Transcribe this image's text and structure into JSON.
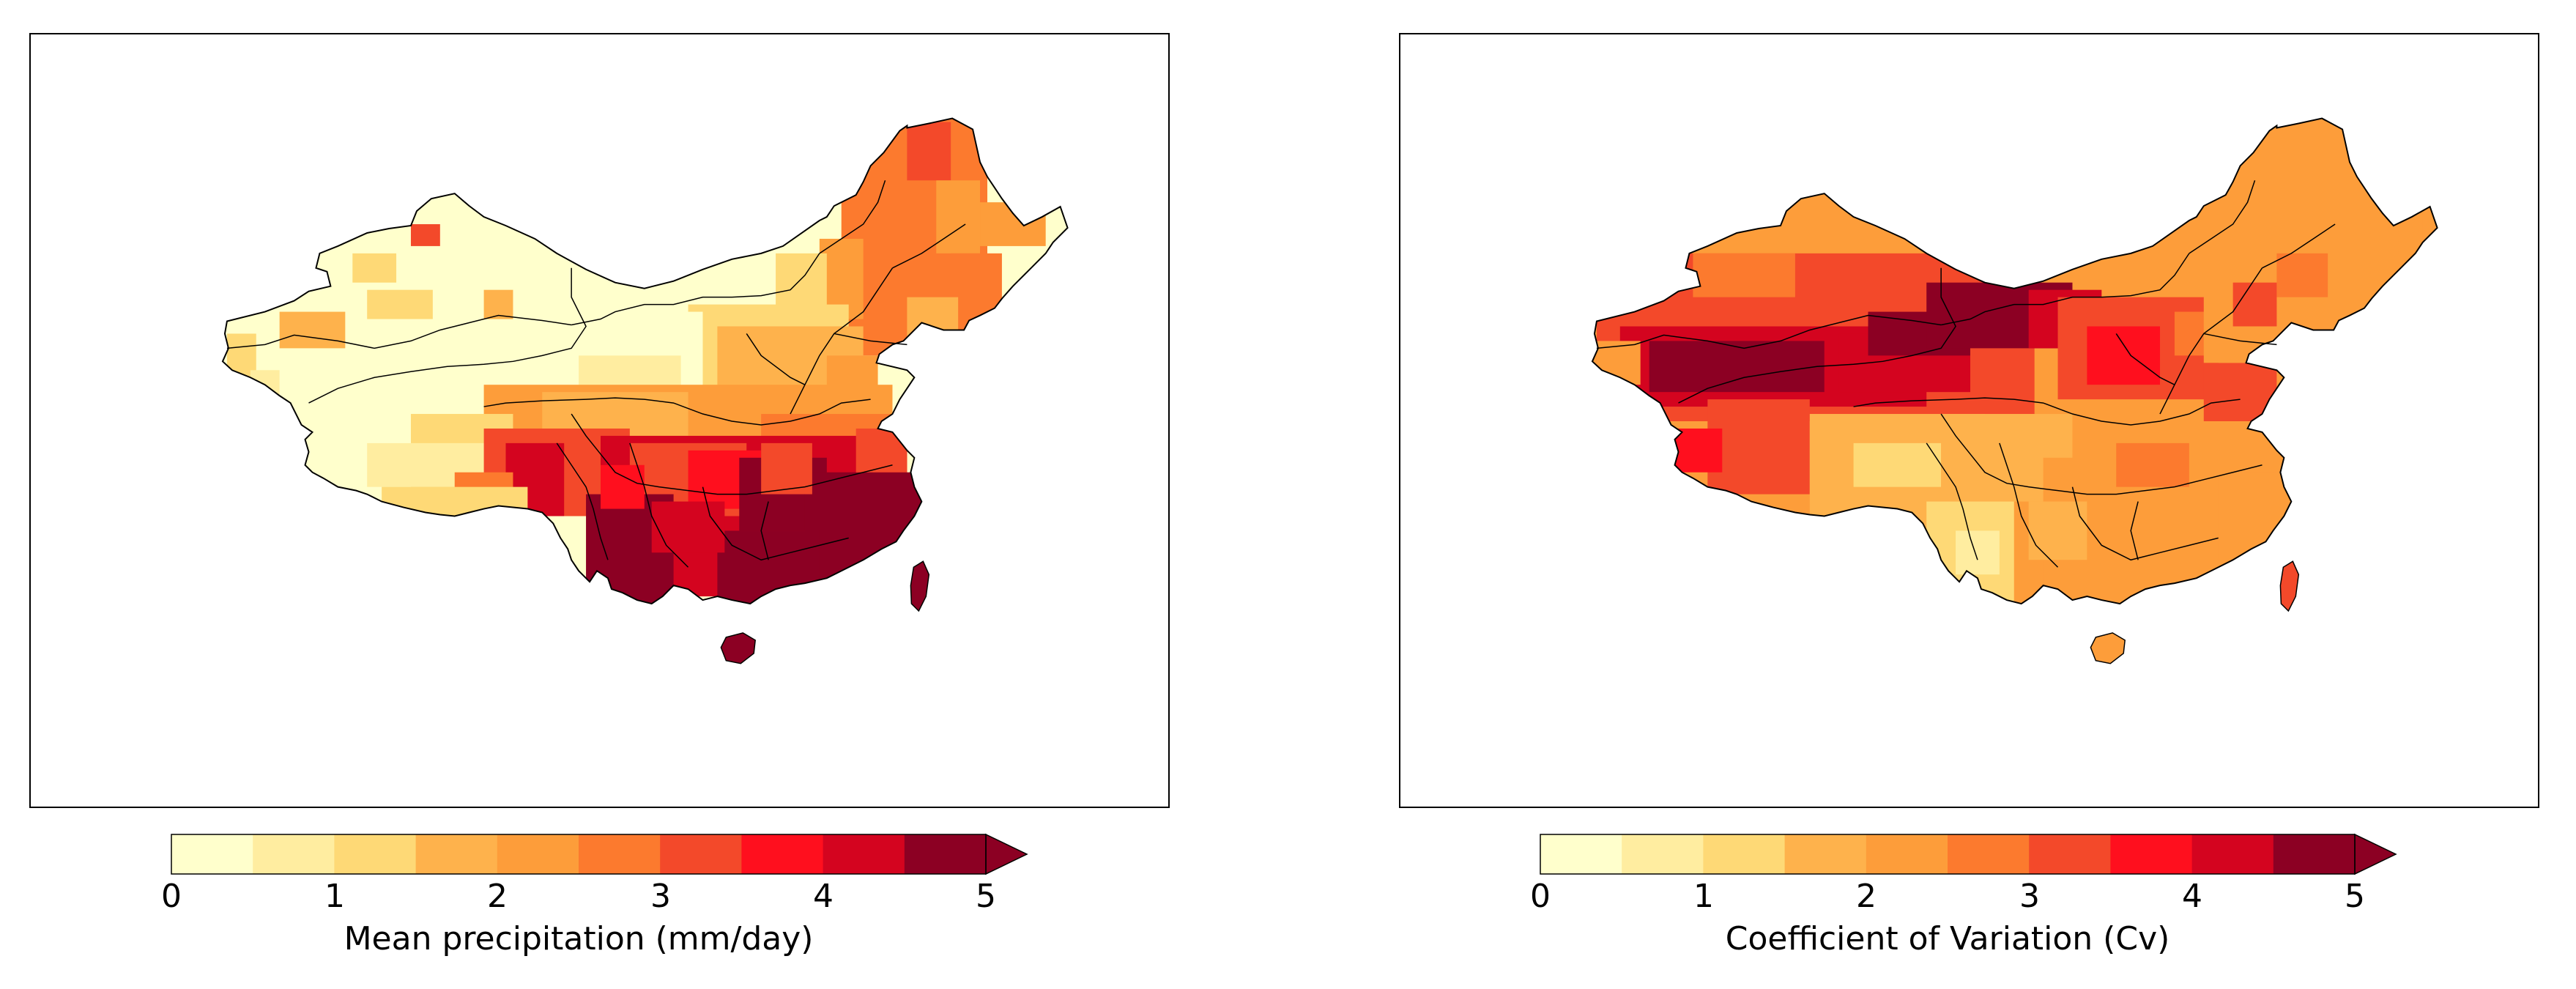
{
  "figure": {
    "panels": [
      {
        "id": "precip",
        "colorbar": {
          "label": "Mean precipitation (mm/day)",
          "ticks": [
            "0",
            "1",
            "2",
            "3",
            "4",
            "5"
          ],
          "range": [
            0,
            5
          ],
          "extend": "max"
        }
      },
      {
        "id": "cv",
        "colorbar": {
          "label": "Coefficient of Variation (Cv)",
          "ticks": [
            "0",
            "1",
            "2",
            "3",
            "4",
            "5"
          ],
          "range": [
            0,
            5
          ],
          "extend": "max"
        }
      }
    ],
    "colormap": {
      "name": "YlOrRd",
      "levels": [
        0,
        0.5,
        1,
        1.5,
        2,
        2.5,
        3,
        3.5,
        4,
        4.5,
        5
      ],
      "colors": [
        "#ffffcc",
        "#ffeda0",
        "#fed976",
        "#feb24c",
        "#fd9d3a",
        "#fc7a2e",
        "#f3492a",
        "#ff0f1e",
        "#d4041f",
        "#8c0023"
      ],
      "extend_color": "#8c0023"
    },
    "basemap": {
      "region": "China",
      "features": [
        "national boundary",
        "river basin boundaries",
        "Hainan Island",
        "Taiwan Island"
      ]
    }
  }
}
